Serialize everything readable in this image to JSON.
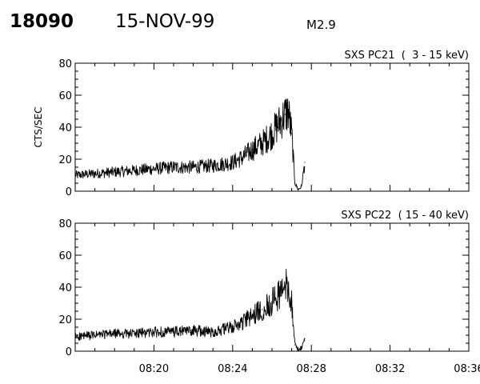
{
  "header": {
    "event_id": "18090",
    "date": "15-NOV-99",
    "flare_class": "M2.9"
  },
  "chart_data": [
    {
      "type": "line",
      "title": "SXS PC21  (  3 - 15 keV)",
      "ylabel": "CTS/SEC",
      "xlabel": "",
      "ylim": [
        0,
        80
      ],
      "yticks": [
        0,
        20,
        40,
        60,
        80
      ],
      "x_unit": "UT time",
      "xlim": [
        "08:16:00",
        "08:36:00"
      ],
      "xticks": [
        "08:20",
        "08:24",
        "08:28",
        "08:32",
        "08:36"
      ],
      "series": [
        {
          "x": [
            "08:16:00",
            "08:17:00",
            "08:18:00",
            "08:19:00",
            "08:20:00",
            "08:21:00",
            "08:22:00",
            "08:23:00",
            "08:24:00",
            "08:24:30",
            "08:25:00",
            "08:25:30",
            "08:26:00",
            "08:26:20",
            "08:26:40",
            "08:26:50",
            "08:27:00",
            "08:27:10",
            "08:27:20",
            "08:27:30",
            "08:27:40"
          ],
          "values": [
            10,
            11,
            12,
            13,
            14,
            15,
            15,
            16,
            18,
            21,
            26,
            30,
            36,
            42,
            48,
            50,
            36,
            5,
            1,
            3,
            18
          ]
        }
      ]
    },
    {
      "type": "line",
      "title": "SXS PC22  ( 15 - 40 keV)",
      "ylabel": "",
      "xlabel": "",
      "ylim": [
        0,
        80
      ],
      "yticks": [
        0,
        20,
        40,
        60,
        80
      ],
      "x_unit": "UT time",
      "xlim": [
        "08:16:00",
        "08:36:00"
      ],
      "xticks": [
        "08:20",
        "08:24",
        "08:28",
        "08:32",
        "08:36"
      ],
      "series": [
        {
          "x": [
            "08:16:00",
            "08:17:00",
            "08:18:00",
            "08:19:00",
            "08:20:00",
            "08:21:00",
            "08:22:00",
            "08:23:00",
            "08:24:00",
            "08:24:30",
            "08:25:00",
            "08:25:30",
            "08:26:00",
            "08:26:20",
            "08:26:40",
            "08:26:50",
            "08:27:00",
            "08:27:10",
            "08:27:20",
            "08:27:30",
            "08:27:40"
          ],
          "values": [
            9,
            10,
            11,
            11,
            12,
            12,
            13,
            12,
            15,
            18,
            22,
            26,
            31,
            35,
            40,
            42,
            30,
            4,
            1,
            2,
            8
          ]
        }
      ]
    }
  ]
}
